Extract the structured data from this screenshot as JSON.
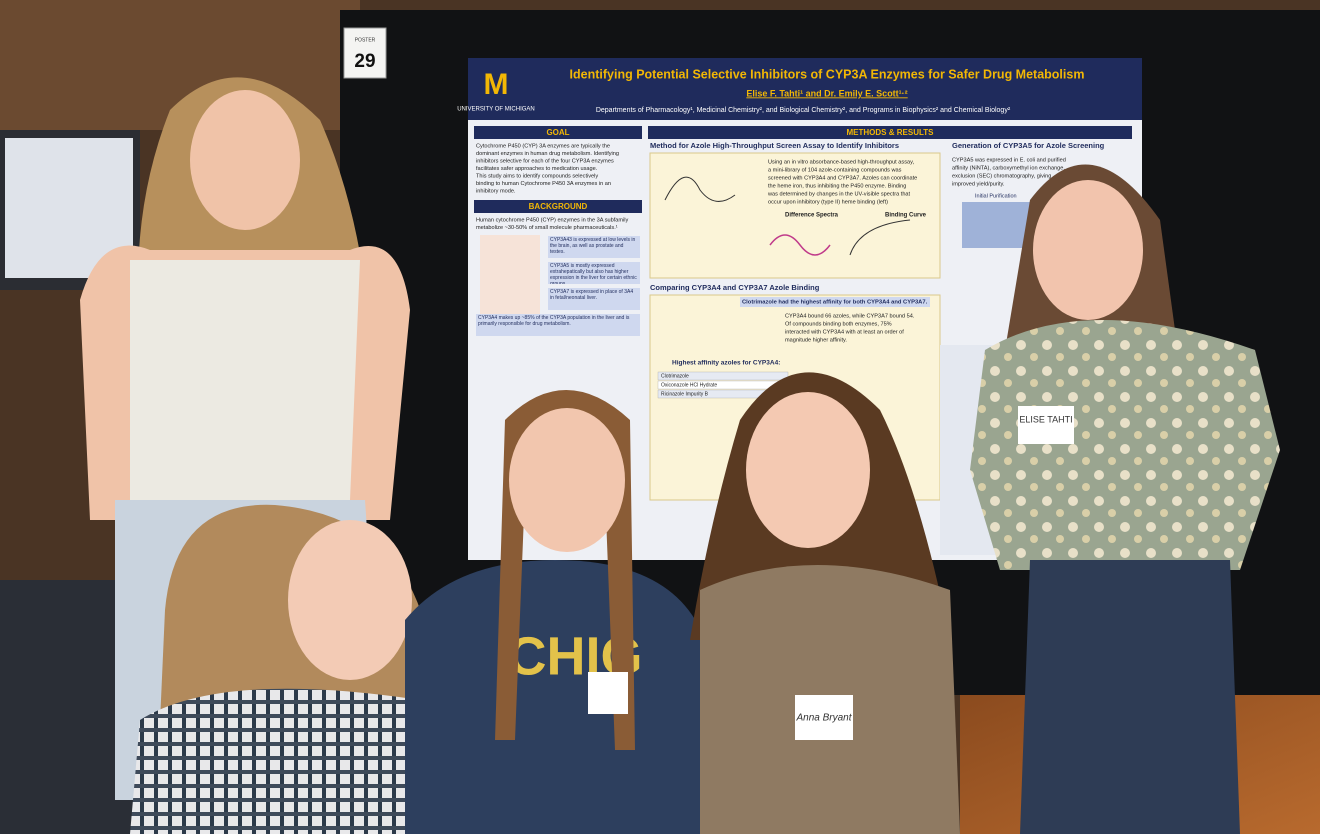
{
  "poster_number": {
    "label": "POSTER",
    "number": "29"
  },
  "poster": {
    "logo": {
      "letter": "M",
      "name": "UNIVERSITY OF MICHIGAN"
    },
    "title": "Identifying Potential Selective Inhibitors of CYP3A Enzymes for Safer Drug Metabolism",
    "authors": "Elise F. Tahti¹ and Dr. Emily E. Scott¹·²",
    "affiliations": "Departments of Pharmacology¹, Medicinal Chemistry², and Biological Chemistry², and Programs in Biophysics² and Chemical Biology²",
    "goal": {
      "heading": "GOAL",
      "lines": [
        "Cytochrome P450 (CYP) 3A enzymes are typically the",
        "dominant enzymes in human drug metabolism. Identifying",
        "inhibitors selective for each of the four CYP3A enzymes",
        "facilitates safer approaches to medication usage.",
        "This study aims to identify compounds selectively",
        "binding to human Cytochrome P450 3A enzymes in an",
        "inhibitory mode."
      ]
    },
    "background": {
      "heading": "BACKGROUND",
      "lines": [
        "Human cytochrome P450 (CYP) enzymes in the 3A subfamily",
        "metabolize ~30-50% of small molecule pharmaceuticals.¹"
      ],
      "boxes": [
        "CYP3A43 is expressed at low levels in the brain, as well as prostate and testes.",
        "CYP3A5 is mostly expressed extrahepatically but also has higher expression in the liver for certain ethnic groups.",
        "CYP3A7 is expressed in place of 3A4 in fetal/neonatal liver.",
        "CYP3A4 makes up ~85% of the CYP3A population in the liver and is primarily responsible for drug metabolism."
      ]
    },
    "methods": {
      "heading": "METHODS & RESULTS",
      "sub1": "Method for Azole High-Throughput Screen Assay to Identify Inhibitors",
      "sub1_lines": [
        "Using an in vitro absorbance-based high-throughput assay,",
        "a mini-library of 104 azole-containing compounds was",
        "screened with CYP3A4 and CYP3A7. Azoles can coordinate",
        "the heme iron, thus inhibiting the P450 enzyme. Binding",
        "was determined by changes in the UV-visible spectra that",
        "occur upon inhibitory (type II) heme binding (left)"
      ],
      "panel1": "Difference Spectra",
      "panel2": "Binding Curve",
      "sub2": "Comparing CYP3A4 and CYP3A7 Azole Binding",
      "sub2_note": "Clotrimazole had the highest affinity for both CYP3A4 and CYP3A7.",
      "sub2_lines": [
        "CYP3A4 bound 66 azoles, while CYP3A7 bound 54.",
        "Of compounds binding both enzymes, 75%",
        "interacted with CYP3A4 with at least an order of",
        "magnitude higher affinity."
      ],
      "table_title": "Highest affinity azoles for CYP3A4:",
      "table_rows": [
        "Clotrimazole",
        "Oxiconazole HCl Hydrate",
        "Ricinazole Impurity B"
      ]
    },
    "cyp3a5": {
      "heading": "Generation of CYP3A5 for Azole Screening",
      "lines": [
        "CYP3A5 was expressed in E. coli and purified",
        "affinity (NiNTA), carboxymethyl ion exchange,",
        "exclusion (SEC) chromatography, giving",
        "improved yield/purity."
      ],
      "panel": "Initial Purification"
    }
  },
  "shirt_text": "CHIG",
  "name_tags": [
    "ELISE TAHTI",
    "Anna Bryant"
  ]
}
